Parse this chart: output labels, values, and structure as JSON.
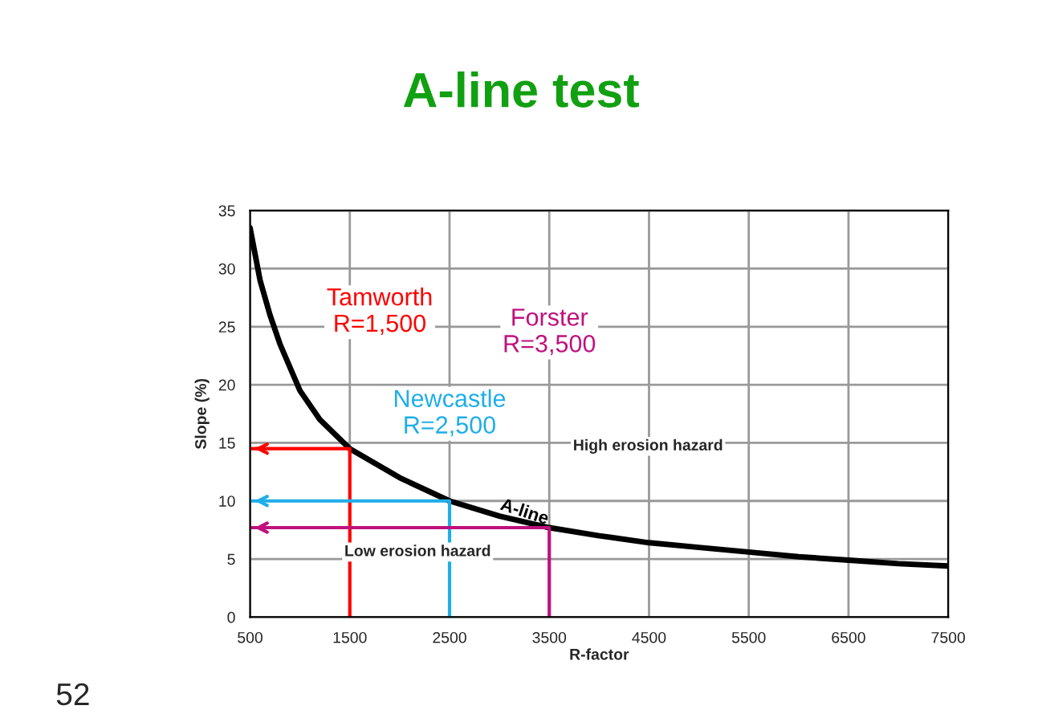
{
  "chart_data": {
    "type": "line",
    "title": "A-line test",
    "xlabel": "R-factor",
    "ylabel": "Slope (%)",
    "xlim": [
      500,
      7500
    ],
    "xticks": [
      500,
      1500,
      2500,
      3500,
      4500,
      5500,
      6500,
      7500
    ],
    "ylim": [
      0,
      35
    ],
    "yticks": [
      0,
      5,
      10,
      15,
      20,
      25,
      30,
      35
    ],
    "grid": true,
    "legend": false,
    "line_style": "solid",
    "marker": "none",
    "series": [
      {
        "name": "A-line",
        "color": "#000000",
        "x": [
          500,
          600,
          700,
          800,
          1000,
          1200,
          1500,
          2000,
          2500,
          3000,
          3500,
          4000,
          4500,
          5000,
          5500,
          6000,
          6500,
          7000,
          7500
        ],
        "values": [
          33.5,
          29,
          26,
          23.5,
          19.5,
          17,
          14.5,
          12,
          10,
          8.7,
          7.7,
          7,
          6.4,
          6,
          5.6,
          5.2,
          4.9,
          4.6,
          4.4
        ]
      },
      {
        "name": "Tamworth\nR=1,500",
        "color": "#ff0000",
        "x": [
          1500,
          1500,
          500
        ],
        "values": [
          0,
          14.5,
          14.5
        ]
      },
      {
        "name": "Newcastle\nR=2,500",
        "color": "#1eaee8",
        "x": [
          2500,
          2500,
          500
        ],
        "values": [
          0,
          10,
          10
        ]
      },
      {
        "name": "Forster\nR=3,500",
        "color": "#c0107e",
        "x": [
          3500,
          3500,
          500
        ],
        "values": [
          0,
          7.7,
          7.7
        ]
      }
    ],
    "annotations": [
      "High erosion hazard",
      "Low erosion hazard",
      "52"
    ]
  }
}
